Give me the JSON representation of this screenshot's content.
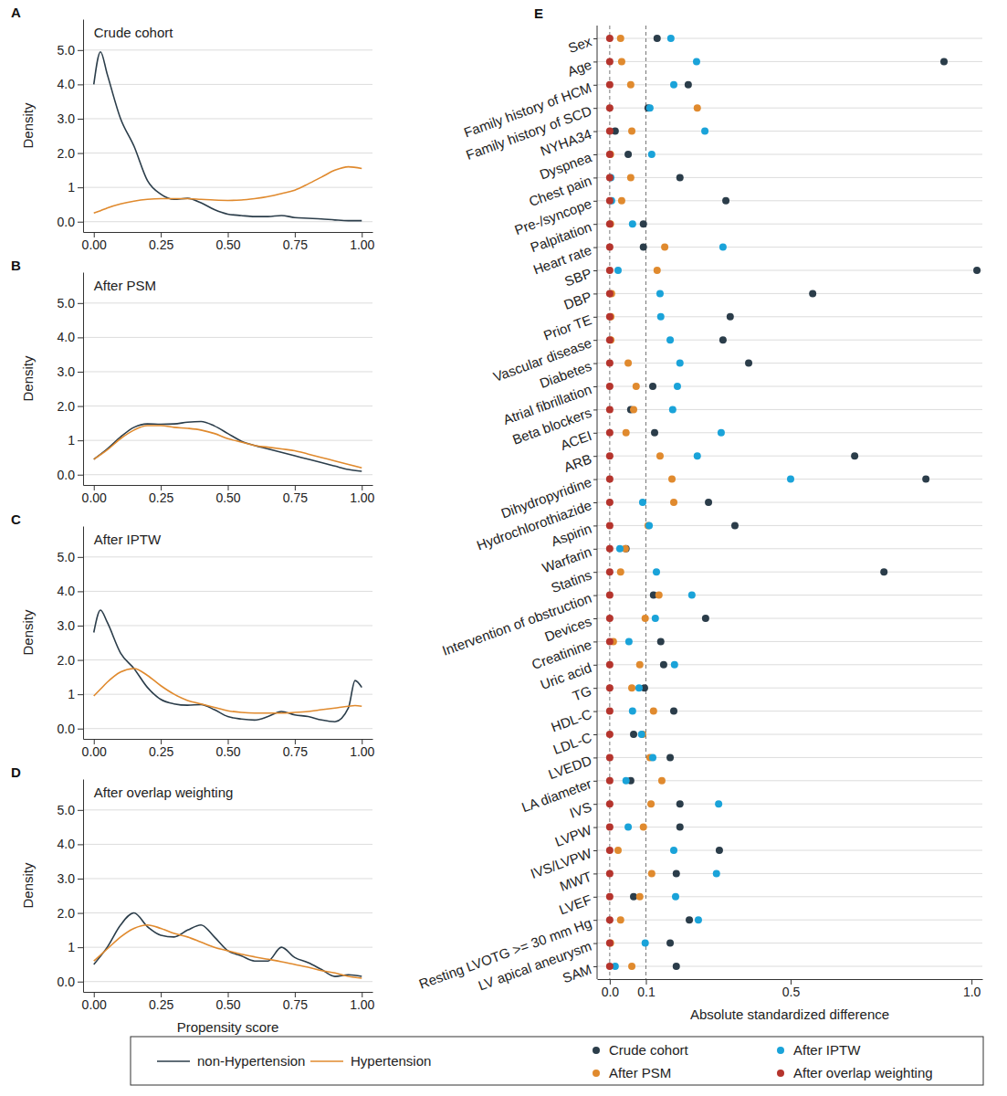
{
  "chart_data": [
    {
      "type": "line",
      "panel_label": "A",
      "title": "Crude cohort",
      "y_label": "Density",
      "x": [
        0,
        0.025,
        0.05,
        0.1,
        0.15,
        0.2,
        0.25,
        0.3,
        0.35,
        0.4,
        0.45,
        0.5,
        0.55,
        0.6,
        0.65,
        0.7,
        0.75,
        0.8,
        0.85,
        0.9,
        0.95,
        1.0
      ],
      "series": [
        {
          "name": "non-Hypertension",
          "color": "#2b3d4a",
          "values": [
            4.0,
            4.95,
            4.3,
            3.0,
            2.2,
            1.2,
            0.8,
            0.65,
            0.68,
            0.55,
            0.35,
            0.22,
            0.18,
            0.15,
            0.15,
            0.18,
            0.12,
            0.1,
            0.08,
            0.05,
            0.03,
            0.03
          ]
        },
        {
          "name": "Hypertension",
          "color": "#e08a2e",
          "values": [
            0.25,
            0.32,
            0.4,
            0.52,
            0.6,
            0.65,
            0.67,
            0.67,
            0.67,
            0.65,
            0.63,
            0.62,
            0.63,
            0.67,
            0.73,
            0.82,
            0.92,
            1.1,
            1.3,
            1.5,
            1.6,
            1.55
          ]
        }
      ],
      "xlim": [
        -0.04,
        1.04
      ],
      "ylim": [
        -0.3,
        5.9
      ],
      "xticks": [
        {
          "value": 0,
          "label": "0.00"
        },
        0.25,
        {
          "value": 0.5,
          "label": "0.50"
        },
        0.75,
        {
          "value": 1,
          "label": "1.00"
        }
      ],
      "yticks": [
        {
          "value": 0,
          "label": "0.0"
        },
        1,
        {
          "value": 2,
          "label": "2.0"
        },
        {
          "value": 3,
          "label": "3.0"
        },
        {
          "value": 4,
          "label": "4.0"
        },
        {
          "value": 5,
          "label": "5.0"
        }
      ],
      "grid": true,
      "legend": "bottom"
    },
    {
      "type": "line",
      "panel_label": "B",
      "title": "After PSM",
      "y_label": "Density",
      "x": [
        0,
        0.05,
        0.1,
        0.15,
        0.2,
        0.25,
        0.3,
        0.35,
        0.4,
        0.45,
        0.5,
        0.55,
        0.6,
        0.65,
        0.7,
        0.75,
        0.8,
        0.85,
        0.9,
        0.95,
        1.0
      ],
      "series": [
        {
          "color": "#2b3d4a",
          "values": [
            0.45,
            0.75,
            1.1,
            1.38,
            1.48,
            1.47,
            1.48,
            1.53,
            1.55,
            1.42,
            1.2,
            0.98,
            0.85,
            0.75,
            0.65,
            0.55,
            0.45,
            0.35,
            0.25,
            0.15,
            0.1
          ]
        },
        {
          "color": "#e08a2e",
          "values": [
            0.45,
            0.72,
            1.05,
            1.3,
            1.43,
            1.43,
            1.38,
            1.35,
            1.3,
            1.2,
            1.05,
            0.95,
            0.85,
            0.8,
            0.75,
            0.7,
            0.6,
            0.5,
            0.4,
            0.3,
            0.2
          ]
        }
      ],
      "xlim": [
        -0.04,
        1.04
      ],
      "ylim": [
        -0.3,
        5.9
      ],
      "xticks": [
        {
          "value": 0,
          "label": "0.00"
        },
        0.25,
        {
          "value": 0.5,
          "label": "0.50"
        },
        0.75,
        {
          "value": 1,
          "label": "1.00"
        }
      ],
      "yticks": [
        {
          "value": 0,
          "label": "0.0"
        },
        1,
        {
          "value": 2,
          "label": "2.0"
        },
        {
          "value": 3,
          "label": "3.0"
        },
        {
          "value": 4,
          "label": "4.0"
        },
        {
          "value": 5,
          "label": "5.0"
        }
      ],
      "grid": true
    },
    {
      "type": "line",
      "panel_label": "C",
      "title": "After IPTW",
      "y_label": "Density",
      "x": [
        0,
        0.025,
        0.05,
        0.1,
        0.15,
        0.2,
        0.25,
        0.3,
        0.35,
        0.4,
        0.45,
        0.5,
        0.55,
        0.6,
        0.65,
        0.7,
        0.75,
        0.8,
        0.85,
        0.9,
        0.95,
        0.975,
        1.0
      ],
      "series": [
        {
          "color": "#2b3d4a",
          "values": [
            2.8,
            3.45,
            3.1,
            2.2,
            1.75,
            1.2,
            0.85,
            0.72,
            0.68,
            0.7,
            0.55,
            0.35,
            0.28,
            0.25,
            0.35,
            0.5,
            0.4,
            0.35,
            0.25,
            0.2,
            0.6,
            1.4,
            1.2
          ]
        },
        {
          "color": "#e08a2e",
          "values": [
            0.95,
            1.15,
            1.35,
            1.65,
            1.75,
            1.55,
            1.25,
            1.0,
            0.82,
            0.72,
            0.62,
            0.52,
            0.47,
            0.45,
            0.45,
            0.45,
            0.47,
            0.5,
            0.55,
            0.6,
            0.65,
            0.67,
            0.65
          ]
        }
      ],
      "xlim": [
        -0.04,
        1.04
      ],
      "ylim": [
        -0.3,
        5.9
      ],
      "xticks": [
        {
          "value": 0,
          "label": "0.00"
        },
        0.25,
        {
          "value": 0.5,
          "label": "0.50"
        },
        0.75,
        {
          "value": 1,
          "label": "1.00"
        }
      ],
      "yticks": [
        {
          "value": 0,
          "label": "0.0"
        },
        1,
        {
          "value": 2,
          "label": "2.0"
        },
        {
          "value": 3,
          "label": "3.0"
        },
        {
          "value": 4,
          "label": "4.0"
        },
        {
          "value": 5,
          "label": "5.0"
        }
      ],
      "grid": true
    },
    {
      "type": "line",
      "panel_label": "D",
      "title": "After overlap weighting",
      "y_label": "Density",
      "x_label": "Propensity score",
      "x": [
        0,
        0.05,
        0.1,
        0.15,
        0.2,
        0.25,
        0.3,
        0.35,
        0.4,
        0.45,
        0.5,
        0.55,
        0.6,
        0.65,
        0.7,
        0.75,
        0.8,
        0.85,
        0.9,
        0.95,
        1.0
      ],
      "series": [
        {
          "color": "#2b3d4a",
          "values": [
            0.5,
            1.0,
            1.65,
            2.0,
            1.6,
            1.35,
            1.3,
            1.5,
            1.65,
            1.3,
            0.9,
            0.75,
            0.6,
            0.6,
            1.0,
            0.7,
            0.55,
            0.35,
            0.15,
            0.2,
            0.15
          ]
        },
        {
          "color": "#e08a2e",
          "values": [
            0.6,
            0.95,
            1.3,
            1.55,
            1.65,
            1.55,
            1.4,
            1.3,
            1.15,
            1.0,
            0.9,
            0.8,
            0.72,
            0.65,
            0.58,
            0.5,
            0.42,
            0.32,
            0.25,
            0.15,
            0.1
          ]
        }
      ],
      "xlim": [
        -0.04,
        1.04
      ],
      "ylim": [
        -0.3,
        5.9
      ],
      "xticks": [
        {
          "value": 0,
          "label": "0.00"
        },
        0.25,
        {
          "value": 0.5,
          "label": "0.50"
        },
        0.75,
        {
          "value": 1,
          "label": "1.00"
        }
      ],
      "yticks": [
        {
          "value": 0,
          "label": "0.0"
        },
        1,
        {
          "value": 2,
          "label": "2.0"
        },
        {
          "value": 3,
          "label": "3.0"
        },
        {
          "value": 4,
          "label": "4.0"
        },
        {
          "value": 5,
          "label": "5.0"
        }
      ],
      "grid": true
    },
    {
      "type": "dot",
      "panel_label": "E",
      "x_label": "Absolute standardized difference",
      "orientation": "horizontal",
      "categories": [
        "Sex",
        "Age",
        "Family history of HCM",
        "Family history of SCD",
        "NYHA34",
        "Dyspnea",
        "Chest pain",
        "Pre-/syncope",
        "Palpitation",
        "Heart rate",
        "SBP",
        "DBP",
        "Prior TE",
        "Vascular disease",
        "Diabetes",
        "Atrial fibrillation",
        "Beta blockers",
        "ACEI",
        "ARB",
        "Dihydropyridine",
        "Hydrochlorothiazide",
        "Aspirin",
        "Warfarin",
        "Statins",
        "Intervention of obstruction",
        "Devices",
        "Creatinine",
        "Uric acid",
        "TG",
        "HDL-C",
        "LDL-C",
        "LVEDD",
        "LA diameter",
        "IVS",
        "LVPW",
        "IVS/LVPW",
        "MWT",
        "LVEF",
        "Resting LVOTG >= 30 mm Hg",
        "LV apical aneurysm",
        "SAM"
      ],
      "series": [
        {
          "name": "Crude cohort",
          "color": "#2b3d4a",
          "values": [
            0.131,
            0.924,
            0.217,
            0.106,
            0.015,
            0.051,
            0.194,
            0.321,
            0.093,
            0.093,
            1.015,
            0.561,
            0.333,
            0.313,
            0.384,
            0.119,
            0.058,
            0.124,
            0.677,
            0.874,
            0.273,
            0.346,
            0.045,
            0.758,
            0.121,
            0.265,
            0.141,
            0.149,
            0.096,
            0.177,
            0.066,
            0.167,
            0.058,
            0.194,
            0.194,
            0.303,
            0.184,
            0.066,
            0.22,
            0.167,
            0.184
          ]
        },
        {
          "name": "After PSM",
          "color": "#e08a2e",
          "values": [
            0.03,
            0.033,
            0.058,
            0.242,
            0.061,
            0.002,
            0.058,
            0.033,
            0.002,
            0.152,
            0.131,
            0.005,
            0.003,
            0.003,
            0.051,
            0.073,
            0.066,
            0.045,
            0.139,
            0.172,
            0.177,
            0.106,
            0.043,
            0.03,
            0.136,
            0.098,
            0.01,
            0.083,
            0.061,
            0.121,
            0.091,
            0.111,
            0.144,
            0.114,
            0.093,
            0.023,
            0.116,
            0.083,
            0.03,
            0.002,
            0.061
          ]
        },
        {
          "name": "After IPTW",
          "color": "#1aa3d9",
          "values": [
            0.169,
            0.24,
            0.177,
            0.111,
            0.263,
            0.116,
            0.003,
            0.005,
            0.063,
            0.313,
            0.023,
            0.139,
            0.141,
            0.167,
            0.194,
            0.187,
            0.174,
            0.308,
            0.242,
            0.5,
            0.091,
            0.109,
            0.028,
            0.129,
            0.227,
            0.126,
            0.053,
            0.179,
            0.081,
            0.063,
            0.088,
            0.119,
            0.045,
            0.301,
            0.051,
            0.177,
            0.295,
            0.182,
            0.245,
            0.098,
            0.015
          ]
        },
        {
          "name": "After overlap weighting",
          "color": "#b5342d",
          "values": [
            0,
            0,
            0,
            0,
            0,
            0,
            0,
            0,
            0,
            0,
            0,
            0,
            0,
            0,
            0,
            0,
            0,
            0,
            0,
            0,
            0,
            0,
            0,
            0,
            0,
            0,
            0,
            0,
            0,
            0,
            0,
            0,
            0,
            0,
            0,
            0,
            0,
            0,
            0,
            0,
            0
          ]
        }
      ],
      "xlim": [
        -0.035,
        1.03
      ],
      "xticks": [
        {
          "value": 0,
          "label": "0.0"
        },
        0.1,
        0.5,
        {
          "value": 1,
          "label": "1.0"
        }
      ],
      "reference_lines": [
        0,
        0.1
      ],
      "grid": true,
      "legend": "bottom"
    }
  ]
}
